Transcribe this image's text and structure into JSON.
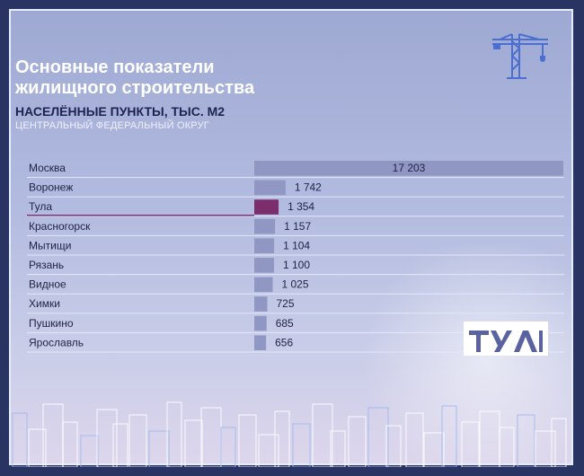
{
  "header": {
    "title": "Основные показатели\nжилищного строительства",
    "subtitle": "НАСЕЛЁННЫЕ ПУНКТЫ, ТЫС. М2",
    "region": "ЦЕНТРАЛЬНЫЙ ФЕДЕРАЛЬНЫЙ ОКРУГ"
  },
  "icons": {
    "crane": "crane-icon",
    "logo": "tula-logo"
  },
  "colors": {
    "bar": "#8f97c2",
    "highlight_bar": "#7b2e6b",
    "label": "#1f2245",
    "title": "#ffffff",
    "subtitle": "#1d2350"
  },
  "chart_data": {
    "type": "bar",
    "orientation": "horizontal",
    "categories": [
      "Москва",
      "Воронеж",
      "Тула",
      "Красногорск",
      "Мытищи",
      "Рязань",
      "Видное",
      "Химки",
      "Пушкино",
      "Ярославль"
    ],
    "values": [
      17203,
      1742,
      1354,
      1157,
      1104,
      1100,
      1025,
      725,
      685,
      656
    ],
    "value_labels": [
      "17 203",
      "1 742",
      "1 354",
      "1 157",
      "1 104",
      "1 100",
      "1 025",
      "725",
      "685",
      "656"
    ],
    "highlight": "Тула",
    "xlim": [
      0,
      17203
    ],
    "grid": true
  }
}
